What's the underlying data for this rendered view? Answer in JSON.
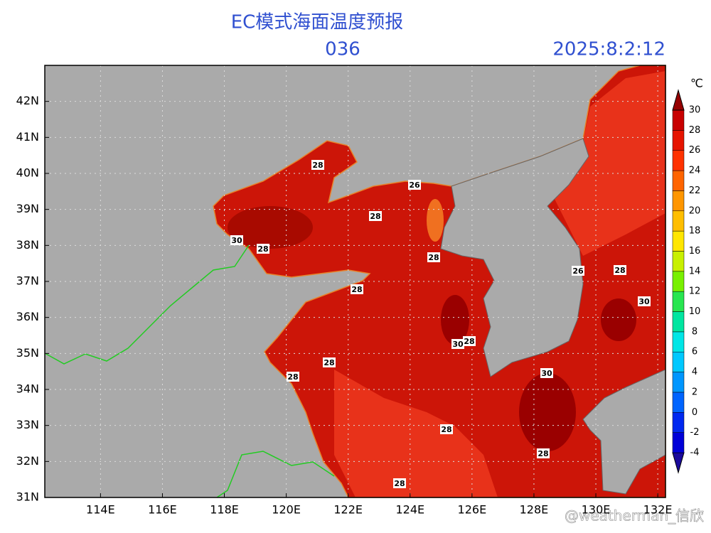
{
  "header": {
    "title": "EC模式海面温度预报",
    "forecast_hour": "036",
    "valid_time": "2025:8:2:12"
  },
  "map": {
    "lonlim": [
      112.2,
      132.25
    ],
    "latlim": [
      31,
      43
    ],
    "lon_ticks": [
      {
        "value": 114,
        "label": "114E"
      },
      {
        "value": 116,
        "label": "116E"
      },
      {
        "value": 118,
        "label": "118E"
      },
      {
        "value": 120,
        "label": "120E"
      },
      {
        "value": 122,
        "label": "122E"
      },
      {
        "value": 124,
        "label": "124E"
      },
      {
        "value": 126,
        "label": "126E"
      },
      {
        "value": 128,
        "label": "128E"
      },
      {
        "value": 130,
        "label": "130E"
      },
      {
        "value": 132,
        "label": "132E"
      }
    ],
    "lat_ticks": [
      {
        "value": 31,
        "label": "31N"
      },
      {
        "value": 32,
        "label": "32N"
      },
      {
        "value": 33,
        "label": "33N"
      },
      {
        "value": 34,
        "label": "34N"
      },
      {
        "value": 35,
        "label": "35N"
      },
      {
        "value": 36,
        "label": "36N"
      },
      {
        "value": 37,
        "label": "37N"
      },
      {
        "value": 38,
        "label": "38N"
      },
      {
        "value": 39,
        "label": "39N"
      },
      {
        "value": 40,
        "label": "40N"
      },
      {
        "value": 41,
        "label": "41N"
      },
      {
        "value": 42,
        "label": "42N"
      }
    ],
    "grid": true,
    "contour_labels": [
      28,
      30,
      28,
      28,
      26,
      28,
      28,
      28,
      30,
      28,
      28,
      26,
      28,
      30,
      30,
      28,
      28,
      28
    ]
  },
  "colorbar": {
    "unit": "℃",
    "levels": [
      -4,
      -2,
      0,
      2,
      4,
      6,
      8,
      10,
      12,
      14,
      16,
      18,
      20,
      22,
      24,
      26,
      28,
      30
    ],
    "colors": [
      "#1a0a9c",
      "#0000d8",
      "#0028f0",
      "#0064ff",
      "#0096ff",
      "#00c8ff",
      "#00e6e6",
      "#00e6a0",
      "#28e650",
      "#78f000",
      "#c8f000",
      "#ffe600",
      "#ffbe00",
      "#ff9600",
      "#ff6400",
      "#ff3200",
      "#e61400",
      "#c80000",
      "#960000"
    ]
  },
  "watermark": "@weatherman_信欣"
}
